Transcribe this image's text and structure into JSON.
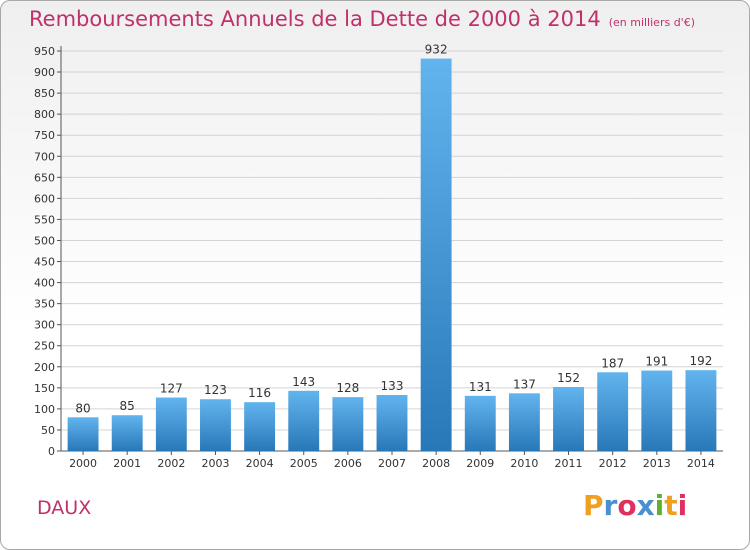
{
  "header": {
    "title": "Remboursements Annuels de la Dette de 2000 à 2014",
    "subtitle": "(en milliers d'€)"
  },
  "footer": {
    "commune": "DAUX",
    "logo_letters": [
      "P",
      "r",
      "o",
      "x",
      "i",
      "t",
      "i"
    ],
    "logo_colors": [
      "#f0a020",
      "#4a90d0",
      "#e03060",
      "#4a90d0",
      "#60b030",
      "#f0a020",
      "#e03060"
    ]
  },
  "colors": {
    "title": "#c0306c",
    "bar_top": "#62b4ee",
    "bar_bottom": "#2878b8",
    "grid": "#d4d4d4"
  },
  "chart_data": {
    "type": "bar",
    "categories": [
      "2000",
      "2001",
      "2002",
      "2003",
      "2004",
      "2005",
      "2006",
      "2007",
      "2008",
      "2009",
      "2010",
      "2011",
      "2012",
      "2013",
      "2014"
    ],
    "values": [
      80,
      85,
      127,
      123,
      116,
      143,
      128,
      133,
      932,
      131,
      137,
      152,
      187,
      191,
      192
    ],
    "data_labels": [
      "80",
      "85",
      "127",
      "123",
      "116",
      "143",
      "128",
      "133",
      "932",
      "131",
      "137",
      "152",
      "187",
      "191",
      "192"
    ],
    "yticks": [
      0,
      50,
      100,
      150,
      200,
      250,
      300,
      350,
      400,
      450,
      500,
      550,
      600,
      650,
      700,
      750,
      800,
      850,
      900,
      950
    ],
    "ylim": [
      0,
      950
    ],
    "grid": true,
    "legend": "none"
  }
}
